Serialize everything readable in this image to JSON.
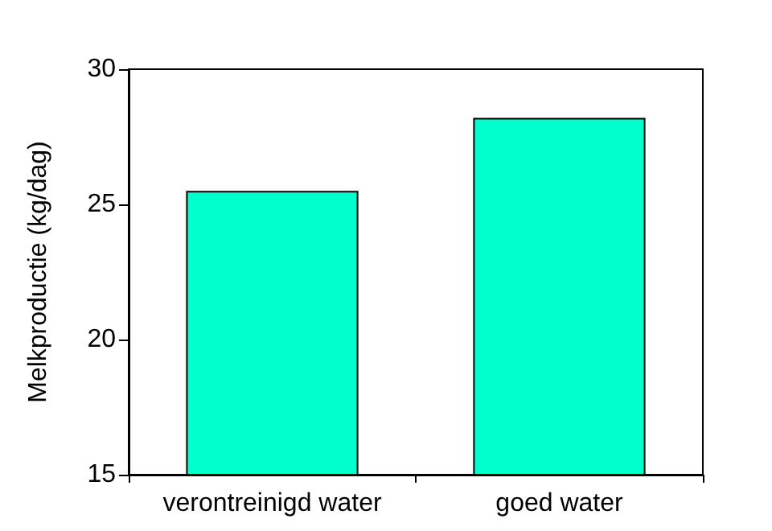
{
  "chart_data": {
    "type": "bar",
    "ylabel": "Melkproductie (kg/dag)",
    "categories": [
      "verontreinigd water",
      "goed water"
    ],
    "values": [
      25.5,
      28.2
    ],
    "color": "#00ffcc",
    "ylim": [
      15,
      30
    ],
    "yticks": [
      15,
      20,
      25,
      30
    ],
    "grid": false
  }
}
